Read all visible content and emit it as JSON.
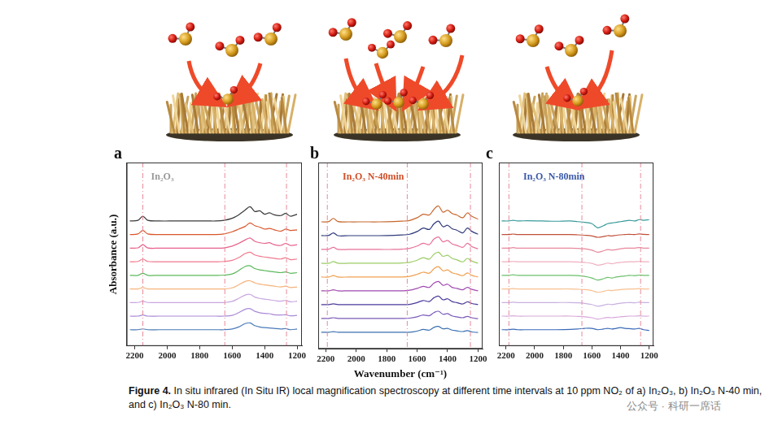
{
  "chart_data": [
    {
      "type": "line",
      "panel": "a",
      "title": "In₂O₃",
      "y_label": "Absorbance (a.u.)",
      "x": [
        2230,
        2180,
        2150,
        2120,
        2050,
        1950,
        1850,
        1750,
        1700,
        1650,
        1600,
        1560,
        1520,
        1490,
        1460,
        1430,
        1400,
        1370,
        1340,
        1300,
        1270,
        1240,
        1200
      ],
      "xlim": [
        2250,
        1170
      ],
      "xticks": [
        2200,
        2000,
        1800,
        1600,
        1400,
        1200
      ],
      "ylim": [
        0,
        13.5
      ],
      "tick_labels": "x",
      "grid": false,
      "vlines": [
        2150,
        1645,
        1265
      ],
      "series": [
        {
          "color": "#3a3a3a",
          "values": [
            9.2,
            9.25,
            9.55,
            9.25,
            9.2,
            9.2,
            9.2,
            9.2,
            9.2,
            9.25,
            9.4,
            9.65,
            10.0,
            10.25,
            9.9,
            9.95,
            9.7,
            9.8,
            9.65,
            9.6,
            9.75,
            9.55,
            9.7
          ]
        },
        {
          "color": "#d9562b",
          "values": [
            8.2,
            8.25,
            8.5,
            8.25,
            8.2,
            8.2,
            8.2,
            8.2,
            8.2,
            8.25,
            8.4,
            8.6,
            8.8,
            9.05,
            8.85,
            8.75,
            8.6,
            8.65,
            8.55,
            8.45,
            8.6,
            8.5,
            8.55
          ]
        },
        {
          "color": "#e8628c",
          "values": [
            7.2,
            7.22,
            7.45,
            7.22,
            7.2,
            7.2,
            7.2,
            7.2,
            7.2,
            7.22,
            7.35,
            7.55,
            7.8,
            7.95,
            7.7,
            7.6,
            7.55,
            7.6,
            7.45,
            7.4,
            7.55,
            7.4,
            7.45
          ]
        },
        {
          "color": "#f07a8e",
          "values": [
            6.2,
            6.22,
            6.4,
            6.22,
            6.2,
            6.2,
            6.2,
            6.2,
            6.2,
            6.22,
            6.3,
            6.5,
            6.8,
            6.9,
            6.7,
            6.6,
            6.55,
            6.5,
            6.45,
            6.4,
            6.5,
            6.35,
            6.4
          ]
        },
        {
          "color": "#5cb85c",
          "values": [
            5.2,
            5.2,
            5.35,
            5.2,
            5.2,
            5.2,
            5.2,
            5.2,
            5.2,
            5.22,
            5.3,
            5.55,
            5.85,
            5.9,
            5.7,
            5.6,
            5.55,
            5.5,
            5.45,
            5.4,
            5.45,
            5.35,
            5.4
          ]
        },
        {
          "color": "#f6b27a",
          "values": [
            4.2,
            4.2,
            4.3,
            4.2,
            4.2,
            4.2,
            4.2,
            4.2,
            4.2,
            4.2,
            4.28,
            4.5,
            4.75,
            4.8,
            4.65,
            4.55,
            4.5,
            4.45,
            4.4,
            4.35,
            4.4,
            4.3,
            4.35
          ]
        },
        {
          "color": "#c9a6e0",
          "values": [
            3.2,
            3.2,
            3.3,
            3.2,
            3.2,
            3.2,
            3.2,
            3.2,
            3.2,
            3.2,
            3.28,
            3.5,
            3.75,
            3.8,
            3.6,
            3.5,
            3.45,
            3.4,
            3.35,
            3.3,
            3.35,
            3.25,
            3.3
          ]
        },
        {
          "color": "#a98ad6",
          "values": [
            2.2,
            2.2,
            2.28,
            2.2,
            2.2,
            2.2,
            2.2,
            2.2,
            2.2,
            2.2,
            2.25,
            2.45,
            2.7,
            2.75,
            2.55,
            2.45,
            2.4,
            2.38,
            2.3,
            2.28,
            2.3,
            2.22,
            2.25
          ]
        },
        {
          "color": "#4a7ab8",
          "values": [
            1.2,
            1.2,
            1.26,
            1.2,
            1.2,
            1.2,
            1.2,
            1.2,
            1.2,
            1.2,
            1.25,
            1.4,
            1.65,
            1.7,
            1.5,
            1.4,
            1.35,
            1.33,
            1.3,
            1.25,
            1.28,
            1.2,
            1.25
          ]
        }
      ]
    },
    {
      "type": "line",
      "panel": "b",
      "title": "In₂O₃ N-40min",
      "x_label": "Wavenumber (cm⁻¹)",
      "x": [
        2230,
        2180,
        2150,
        2120,
        2050,
        1950,
        1850,
        1750,
        1700,
        1650,
        1600,
        1560,
        1520,
        1490,
        1460,
        1430,
        1400,
        1370,
        1340,
        1300,
        1270,
        1240,
        1200
      ],
      "xlim": [
        2250,
        1170
      ],
      "xticks": [
        2200,
        2000,
        1800,
        1600,
        1400,
        1200
      ],
      "ylim": [
        0,
        13.5
      ],
      "tick_labels": "x",
      "grid": false,
      "vlines": [
        2190,
        1665,
        1250
      ],
      "series": [
        {
          "color": "#c8682e",
          "values": [
            9.2,
            9.22,
            9.45,
            9.22,
            9.2,
            9.2,
            9.2,
            9.22,
            9.25,
            9.3,
            9.5,
            9.75,
            9.7,
            10.1,
            10.35,
            9.9,
            10.05,
            9.8,
            9.7,
            9.5,
            9.85,
            9.6,
            9.4
          ]
        },
        {
          "color": "#2f3a7a",
          "values": [
            8.2,
            8.22,
            8.4,
            8.2,
            8.2,
            8.2,
            8.2,
            8.22,
            8.25,
            8.3,
            8.5,
            8.75,
            8.65,
            9.05,
            9.25,
            8.85,
            8.95,
            8.7,
            8.6,
            8.4,
            8.75,
            8.5,
            8.3
          ]
        },
        {
          "color": "#e8709a",
          "values": [
            7.2,
            7.22,
            7.35,
            7.2,
            7.2,
            7.2,
            7.2,
            7.2,
            7.22,
            7.28,
            7.45,
            7.65,
            7.55,
            7.95,
            8.1,
            7.75,
            7.85,
            7.6,
            7.5,
            7.35,
            7.65,
            7.4,
            7.25
          ]
        },
        {
          "color": "#9ccc65",
          "values": [
            6.2,
            6.2,
            6.32,
            6.2,
            6.2,
            6.2,
            6.2,
            6.2,
            6.22,
            6.26,
            6.42,
            6.6,
            6.5,
            6.85,
            7.0,
            6.7,
            6.78,
            6.55,
            6.45,
            6.3,
            6.55,
            6.35,
            6.2
          ]
        },
        {
          "color": "#f0a050",
          "values": [
            5.2,
            5.2,
            5.3,
            5.2,
            5.2,
            5.2,
            5.2,
            5.2,
            5.2,
            5.25,
            5.4,
            5.55,
            5.48,
            5.8,
            5.95,
            5.65,
            5.72,
            5.5,
            5.42,
            5.3,
            5.5,
            5.32,
            5.2
          ]
        },
        {
          "color": "#a04ab0",
          "values": [
            4.2,
            4.2,
            4.28,
            4.2,
            4.2,
            4.2,
            4.2,
            4.2,
            4.2,
            4.24,
            4.38,
            4.52,
            4.45,
            4.75,
            4.88,
            4.6,
            4.68,
            4.45,
            4.38,
            4.28,
            4.45,
            4.3,
            4.2
          ]
        },
        {
          "color": "#4a3a9a",
          "values": [
            3.2,
            3.2,
            3.26,
            3.2,
            3.2,
            3.2,
            3.2,
            3.2,
            3.2,
            3.22,
            3.35,
            3.5,
            3.42,
            3.7,
            3.82,
            3.55,
            3.62,
            3.42,
            3.35,
            3.25,
            3.4,
            3.28,
            3.2
          ]
        },
        {
          "color": "#7a5ab8",
          "values": [
            2.2,
            2.2,
            2.25,
            2.2,
            2.2,
            2.2,
            2.2,
            2.2,
            2.2,
            2.22,
            2.32,
            2.45,
            2.4,
            2.62,
            2.72,
            2.5,
            2.55,
            2.38,
            2.32,
            2.25,
            2.35,
            2.25,
            2.18
          ]
        },
        {
          "color": "#3a70b0",
          "values": [
            1.2,
            1.2,
            1.24,
            1.2,
            1.2,
            1.2,
            1.2,
            1.2,
            1.2,
            1.2,
            1.28,
            1.4,
            1.35,
            1.55,
            1.62,
            1.45,
            1.48,
            1.35,
            1.3,
            1.25,
            1.32,
            1.22,
            1.18
          ]
        }
      ]
    },
    {
      "type": "line",
      "panel": "c",
      "title": "In₂O₃ N-80min",
      "x": [
        2230,
        2180,
        2150,
        2120,
        2050,
        1950,
        1850,
        1750,
        1700,
        1650,
        1600,
        1560,
        1520,
        1490,
        1460,
        1430,
        1400,
        1370,
        1340,
        1300,
        1270,
        1240,
        1200
      ],
      "xlim": [
        2250,
        1170
      ],
      "xticks": [
        2200,
        2000,
        1800,
        1600,
        1400,
        1200
      ],
      "ylim": [
        0,
        13.5
      ],
      "tick_labels": "x",
      "grid": false,
      "vlines": [
        2180,
        1670,
        1260
      ],
      "series": [
        {
          "color": "#3a9a9a",
          "values": [
            9.2,
            9.2,
            9.25,
            9.2,
            9.22,
            9.2,
            9.18,
            9.2,
            9.15,
            9.1,
            9.0,
            8.7,
            8.85,
            9.0,
            9.05,
            9.1,
            9.15,
            9.2,
            9.25,
            9.2,
            9.3,
            9.25,
            9.3
          ]
        },
        {
          "color": "#c0503a",
          "values": [
            8.2,
            8.2,
            8.24,
            8.2,
            8.2,
            8.2,
            8.2,
            8.2,
            8.18,
            8.15,
            8.1,
            8.0,
            8.05,
            8.12,
            8.1,
            8.15,
            8.18,
            8.2,
            8.22,
            8.2,
            8.25,
            8.22,
            8.2
          ]
        },
        {
          "color": "#e8889c",
          "values": [
            7.2,
            7.2,
            7.24,
            7.2,
            7.2,
            7.2,
            7.2,
            7.2,
            7.18,
            7.15,
            7.05,
            6.9,
            7.0,
            7.1,
            7.05,
            7.1,
            7.15,
            7.2,
            7.2,
            7.2,
            7.25,
            7.2,
            7.2
          ]
        },
        {
          "color": "#f0b0c0",
          "values": [
            6.2,
            6.2,
            6.22,
            6.2,
            6.2,
            6.2,
            6.2,
            6.2,
            6.18,
            6.15,
            6.08,
            5.95,
            6.02,
            6.1,
            6.05,
            6.12,
            6.15,
            6.18,
            6.2,
            6.2,
            6.22,
            6.2,
            6.2
          ]
        },
        {
          "color": "#6abf6a",
          "values": [
            5.2,
            5.2,
            5.24,
            5.2,
            5.2,
            5.2,
            5.2,
            5.2,
            5.18,
            5.12,
            5.0,
            4.85,
            4.95,
            5.05,
            5.0,
            5.08,
            5.12,
            5.15,
            5.2,
            5.18,
            5.22,
            5.2,
            5.2
          ]
        },
        {
          "color": "#f8c090",
          "values": [
            4.2,
            4.2,
            4.22,
            4.2,
            4.2,
            4.2,
            4.2,
            4.2,
            4.18,
            4.15,
            4.08,
            3.95,
            4.02,
            4.1,
            4.08,
            4.12,
            4.15,
            4.18,
            4.2,
            4.2,
            4.22,
            4.2,
            4.2
          ]
        },
        {
          "color": "#c8b0e0",
          "values": [
            3.2,
            3.2,
            3.22,
            3.2,
            3.2,
            3.2,
            3.2,
            3.2,
            3.18,
            3.14,
            3.05,
            2.92,
            3.0,
            3.08,
            3.05,
            3.1,
            3.15,
            3.18,
            3.2,
            3.18,
            3.22,
            3.2,
            3.2
          ]
        },
        {
          "color": "#d8a8d8",
          "values": [
            2.2,
            2.2,
            2.22,
            2.2,
            2.2,
            2.2,
            2.2,
            2.2,
            2.18,
            2.15,
            2.08,
            1.98,
            2.05,
            2.1,
            2.08,
            2.12,
            2.15,
            2.18,
            2.2,
            2.2,
            2.22,
            2.2,
            2.2
          ]
        },
        {
          "color": "#3a6ab8",
          "values": [
            1.2,
            1.2,
            1.24,
            1.2,
            1.2,
            1.2,
            1.2,
            1.22,
            1.25,
            1.3,
            1.3,
            1.2,
            1.25,
            1.3,
            1.25,
            1.3,
            1.35,
            1.3,
            1.28,
            1.25,
            1.3,
            1.2,
            1.15
          ]
        }
      ]
    }
  ],
  "caption": {
    "label": "Figure 4.",
    "text": "In situ infrared (In Situ IR) local magnification spectroscopy at different time intervals at 10 ppm NO₂ of a) In₂O₃, b) In₂O₃ N-40 min, and c) In₂O₃ N-80 min."
  },
  "watermark": "公众号 · 科研一席话"
}
